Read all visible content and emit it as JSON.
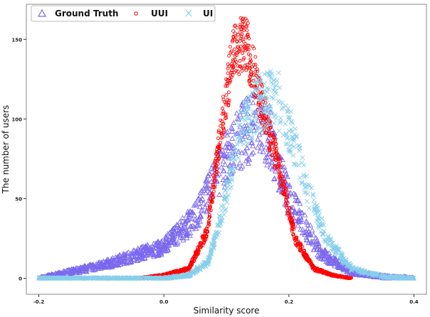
{
  "chart_data": {
    "type": "scatter",
    "xlabel": "Similarity score",
    "ylabel": "The number of users",
    "xlim": [
      -0.22,
      0.42
    ],
    "ylim": [
      -10,
      172
    ],
    "xticks": [
      -0.2,
      0.0,
      0.2,
      0.4
    ],
    "xtick_labels": [
      "-0.2",
      "0.0",
      "0.2",
      "0.4"
    ],
    "yticks": [
      0,
      50,
      100,
      150
    ],
    "ytick_labels": [
      "0",
      "50",
      "100",
      "150"
    ],
    "grid": false,
    "legend_position": "top-left",
    "series": [
      {
        "name": "Ground Truth",
        "marker": "triangle",
        "color": "#7b68ee",
        "x": [
          -0.2,
          -0.15,
          -0.1,
          -0.05,
          0.0,
          0.05,
          0.1,
          0.13,
          0.15,
          0.17,
          0.2,
          0.25,
          0.3,
          0.35,
          0.4
        ],
        "y": [
          0,
          4,
          8,
          14,
          20,
          38,
          75,
          92,
          96,
          88,
          50,
          16,
          4,
          1,
          0
        ],
        "spread": 0.22,
        "points_per_segment": 90
      },
      {
        "name": "UUI",
        "marker": "circle",
        "color": "#ff0000",
        "x": [
          -0.04,
          0.0,
          0.04,
          0.07,
          0.09,
          0.11,
          0.13,
          0.15,
          0.17,
          0.19,
          0.21,
          0.24,
          0.27,
          0.3
        ],
        "y": [
          0,
          2,
          6,
          30,
          90,
          140,
          150,
          120,
          90,
          60,
          25,
          6,
          2,
          0
        ],
        "spread": 0.12,
        "points_per_segment": 90
      },
      {
        "name": "UI",
        "marker": "x",
        "color": "#87ceeb",
        "x": [
          -0.2,
          0.0,
          0.04,
          0.07,
          0.09,
          0.12,
          0.15,
          0.18,
          0.2,
          0.23,
          0.26,
          0.3,
          0.35,
          0.4
        ],
        "y": [
          0,
          0,
          2,
          10,
          35,
          90,
          110,
          115,
          95,
          55,
          25,
          6,
          1,
          0
        ],
        "spread": 0.16,
        "points_per_segment": 90
      }
    ]
  }
}
